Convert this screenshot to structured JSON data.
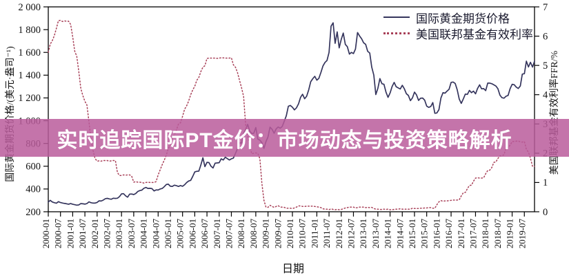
{
  "banner": {
    "text": "实时追踪国际PT金价：市场动态与投资策略解析",
    "bg_rgba": "rgba(186,92,155,0.85)",
    "text_color": "#ffffff"
  },
  "legend": {
    "items": [
      {
        "label": "国际黄金期货价格",
        "style": "solid",
        "color": "#34345c"
      },
      {
        "label": "美国联邦基金有效利率",
        "style": "dotted",
        "color": "#a84058"
      }
    ]
  },
  "axes": {
    "x": {
      "title": "日期",
      "tick_labels": [
        "2000-01",
        "2000-07",
        "2001-01",
        "2001-07",
        "2002-01",
        "2002-07",
        "2003-01",
        "2003-07",
        "2004-01",
        "2004-07",
        "2005-01",
        "2005-07",
        "2006-01",
        "2006-07",
        "2007-01",
        "2007-07",
        "2008-01",
        "2008-07",
        "2009-01",
        "2009-07",
        "2010-01",
        "2010-07",
        "2011-01",
        "2011-07",
        "2012-01",
        "2012-07",
        "2013-01",
        "2013-07",
        "2014-01",
        "2014-07",
        "2015-01",
        "2015-07",
        "2016-01",
        "2016-07",
        "2017-01",
        "2017-07",
        "2018-01",
        "2018-07",
        "2019-01",
        "2019-07"
      ]
    },
    "y_left": {
      "title": "国际黄金期货价格/(美元·盎司⁻¹)",
      "ticks": [
        200,
        400,
        600,
        800,
        1000,
        1200,
        1400,
        1600,
        1800,
        2000
      ],
      "tick_labels": [
        "200",
        "400",
        "600",
        "800",
        "1 000",
        "1 200",
        "1 400",
        "1 600",
        "1 800",
        "2 000"
      ]
    },
    "y_right": {
      "title": "美国联邦基金有效利率FFR/%",
      "ticks": [
        0,
        1,
        2,
        3,
        4,
        5,
        6,
        7
      ],
      "tick_labels": [
        "0",
        "1",
        "2",
        "3",
        "4",
        "5",
        "6",
        "7"
      ]
    }
  },
  "chart_data": {
    "type": "line",
    "x_start": "2000-01",
    "x_end": "2019-12",
    "x_step": "monthly",
    "ylim_left": [
      200,
      2000
    ],
    "ylim_right": [
      0,
      7
    ],
    "grid": false,
    "legend_position": "top-right-inside",
    "series": [
      {
        "name": "国际黄金期货价格",
        "key": "gold-price",
        "axis": "left",
        "unit": "USD/oz",
        "color": "#34345c",
        "style": "solid",
        "values": [
          285,
          300,
          286,
          280,
          275,
          289,
          281,
          277,
          273,
          270,
          266,
          272,
          266,
          262,
          258,
          260,
          272,
          270,
          267,
          272,
          287,
          280,
          276,
          276,
          282,
          296,
          294,
          302,
          314,
          318,
          313,
          310,
          319,
          317,
          319,
          333,
          357,
          359,
          340,
          328,
          355,
          356,
          351,
          360,
          378,
          386,
          390,
          406,
          414,
          405,
          406,
          403,
          383,
          392,
          391,
          400,
          405,
          420,
          439,
          442,
          424,
          423,
          434,
          429,
          422,
          430,
          424,
          437,
          456,
          470,
          476,
          510,
          550,
          555,
          557,
          611,
          675,
          596,
          634,
          632,
          599,
          585,
          627,
          629,
          631,
          665,
          655,
          679,
          667,
          655,
          665,
          672,
          712,
          754,
          806,
          803,
          889,
          922,
          968,
          909,
          888,
          889,
          940,
          839,
          829,
          807,
          757,
          816,
          858,
          943,
          924,
          890,
          928,
          945,
          934,
          949,
          996,
          1043,
          1127,
          1134,
          1118,
          1095,
          1113,
          1148,
          1205,
          1232,
          1193,
          1215,
          1271,
          1342,
          1369,
          1390,
          1356,
          1372,
          1424,
          1480,
          1512,
          1529,
          1600,
          1830,
          1860,
          1680,
          1780,
          1640,
          1715,
          1770,
          1670,
          1650,
          1585,
          1600,
          1590,
          1630,
          1775,
          1745,
          1720,
          1685,
          1670,
          1610,
          1595,
          1470,
          1400,
          1230,
          1285,
          1370,
          1325,
          1320,
          1250,
          1205,
          1244,
          1300,
          1336,
          1299,
          1288,
          1279,
          1311,
          1281,
          1237,
          1222,
          1176,
          1200,
          1251,
          1227,
          1178,
          1198,
          1199,
          1181,
          1128,
          1117,
          1125,
          1159,
          1065,
          1068,
          1097,
          1199,
          1246,
          1242,
          1260,
          1276,
          1337,
          1340,
          1327,
          1272,
          1189,
          1152,
          1192,
          1234,
          1231,
          1266,
          1246,
          1260,
          1236,
          1283,
          1315,
          1280,
          1282,
          1264,
          1331,
          1330,
          1325,
          1315,
          1305,
          1281,
          1224,
          1202,
          1198,
          1215,
          1222,
          1281,
          1320,
          1316,
          1295,
          1283,
          1305,
          1409,
          1413,
          1523,
          1472,
          1513,
          1471,
          1523
        ]
      },
      {
        "name": "美国联邦基金有效利率",
        "key": "ffr",
        "axis": "right",
        "unit": "%",
        "color": "#a84058",
        "style": "dotted",
        "values": [
          5.45,
          5.73,
          5.85,
          6.02,
          6.27,
          6.53,
          6.54,
          6.5,
          6.52,
          6.51,
          6.51,
          6.4,
          5.98,
          5.49,
          5.31,
          4.8,
          4.21,
          3.97,
          3.77,
          3.65,
          3.07,
          2.49,
          2.09,
          1.82,
          1.73,
          1.74,
          1.73,
          1.75,
          1.75,
          1.75,
          1.73,
          1.74,
          1.75,
          1.75,
          1.34,
          1.24,
          1.24,
          1.26,
          1.25,
          1.26,
          1.26,
          1.22,
          1.01,
          1.03,
          1.01,
          1.01,
          1.0,
          0.98,
          1.0,
          1.01,
          1.0,
          1.0,
          1.0,
          1.03,
          1.26,
          1.43,
          1.61,
          1.76,
          1.93,
          2.16,
          2.28,
          2.5,
          2.63,
          2.79,
          3.0,
          3.04,
          3.26,
          3.5,
          3.62,
          3.78,
          4.0,
          4.16,
          4.29,
          4.49,
          4.59,
          4.79,
          4.94,
          4.99,
          5.24,
          5.25,
          5.25,
          5.25,
          5.25,
          5.24,
          5.25,
          5.26,
          5.26,
          5.25,
          5.25,
          5.25,
          5.26,
          5.02,
          4.94,
          4.76,
          4.49,
          4.24,
          3.94,
          2.98,
          2.61,
          2.28,
          1.98,
          2.0,
          2.01,
          2.0,
          1.81,
          0.97,
          0.39,
          0.16,
          0.15,
          0.22,
          0.18,
          0.15,
          0.18,
          0.21,
          0.16,
          0.16,
          0.15,
          0.12,
          0.12,
          0.12,
          0.11,
          0.13,
          0.16,
          0.2,
          0.2,
          0.18,
          0.18,
          0.19,
          0.19,
          0.19,
          0.19,
          0.18,
          0.17,
          0.16,
          0.14,
          0.1,
          0.09,
          0.09,
          0.07,
          0.1,
          0.08,
          0.07,
          0.08,
          0.07,
          0.08,
          0.1,
          0.13,
          0.14,
          0.16,
          0.16,
          0.16,
          0.13,
          0.14,
          0.16,
          0.16,
          0.16,
          0.14,
          0.15,
          0.14,
          0.15,
          0.11,
          0.09,
          0.09,
          0.08,
          0.08,
          0.09,
          0.08,
          0.09,
          0.07,
          0.07,
          0.08,
          0.09,
          0.09,
          0.1,
          0.09,
          0.09,
          0.09,
          0.09,
          0.09,
          0.12,
          0.11,
          0.11,
          0.11,
          0.12,
          0.12,
          0.13,
          0.13,
          0.14,
          0.14,
          0.12,
          0.12,
          0.24,
          0.34,
          0.38,
          0.36,
          0.37,
          0.37,
          0.38,
          0.39,
          0.4,
          0.4,
          0.4,
          0.41,
          0.54,
          0.65,
          0.66,
          0.79,
          0.9,
          0.91,
          1.04,
          1.15,
          1.16,
          1.15,
          1.15,
          1.16,
          1.3,
          1.41,
          1.42,
          1.51,
          1.69,
          1.7,
          1.82,
          1.91,
          1.91,
          1.95,
          2.19,
          2.2,
          2.27,
          2.4,
          2.4,
          2.41,
          2.42,
          2.39,
          2.38,
          2.4,
          2.13,
          2.04,
          1.83,
          1.55,
          1.55
        ]
      }
    ]
  }
}
